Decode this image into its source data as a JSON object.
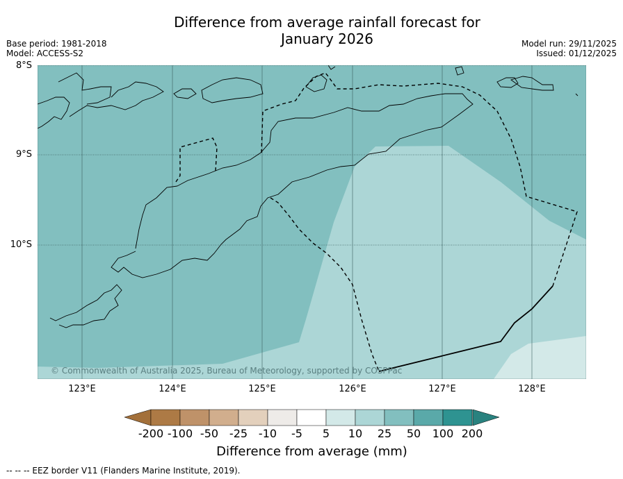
{
  "header": {
    "title_line1": "Difference from average rainfall forecast for",
    "title_line2": "January 2026",
    "base_period": "Base period: 1981-2018",
    "model": "Model: ACCESS-S2",
    "model_run": "Model run: 29/11/2025",
    "issued": "Issued: 01/12/2025"
  },
  "map": {
    "lat_labels": [
      "8°S",
      "9°S",
      "10°S"
    ],
    "lon_labels": [
      "123°E",
      "124°E",
      "125°E",
      "126°E",
      "127°E",
      "128°E"
    ],
    "copyright": "© Commonwealth of Australia 2025, Bureau of Meteorology, supported by COSPPac",
    "category_colors": {
      "25_to_50": "#82bfbf",
      "10_to_25": "#acd6d6",
      "5_to_10": "#d3e9e8"
    }
  },
  "colorbar": {
    "ticks": [
      "-200",
      "-100",
      "-50",
      "-25",
      "-10",
      "-5",
      "5",
      "10",
      "25",
      "50",
      "100",
      "200"
    ],
    "colors": [
      "#a3703a",
      "#ad7a45",
      "#bf9269",
      "#d1ae8d",
      "#e3d0bc",
      "#eeebe8",
      "#ffffff",
      "#d3e9e8",
      "#acd6d6",
      "#82bfbf",
      "#5aa9a9",
      "#2e9391",
      "#29827f"
    ],
    "title": "Difference from average (mm)"
  },
  "footer": {
    "eez_note": "--  --  -- EEZ border V11 (Flanders Marine Institute, 2019)."
  }
}
